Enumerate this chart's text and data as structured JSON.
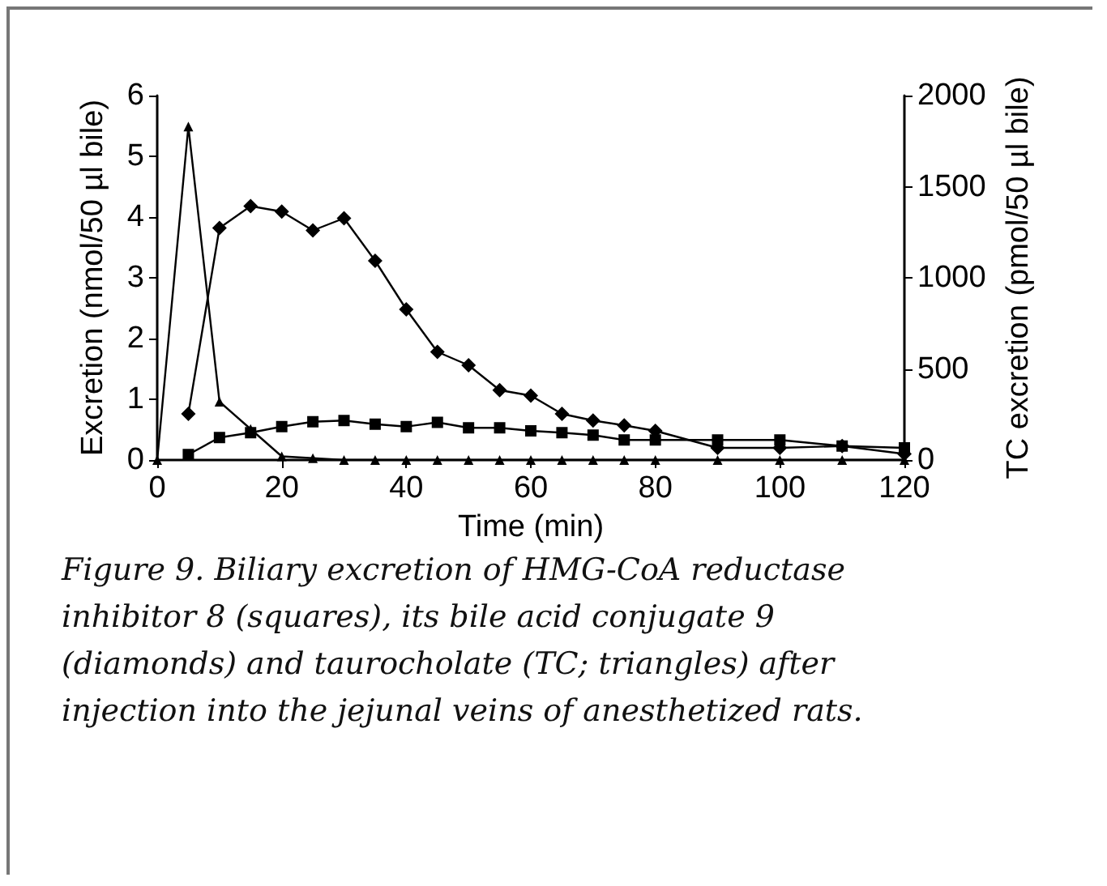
{
  "chart_data": {
    "type": "line",
    "xlabel": "Time (min)",
    "ylabel": "Excretion (nmol/50 µl bile)",
    "y2label": "TC excretion (pmol/50 µl bile)",
    "x": [
      5,
      10,
      15,
      20,
      25,
      30,
      35,
      40,
      45,
      50,
      55,
      60,
      65,
      70,
      75,
      80,
      90,
      100,
      110,
      120
    ],
    "series": [
      {
        "color": "#000000",
        "marker": "square",
        "values": [
          0.09,
          0.37,
          0.45,
          0.55,
          0.63,
          0.65,
          0.59,
          0.55,
          0.62,
          0.53,
          0.53,
          0.48,
          0.45,
          0.41,
          0.33,
          0.33,
          0.33,
          0.33,
          0.23,
          0.2
        ]
      },
      {
        "color": "#000000",
        "marker": "diamond",
        "values": [
          0.76,
          3.82,
          4.18,
          4.09,
          3.78,
          3.98,
          3.28,
          2.48,
          1.78,
          1.56,
          1.15,
          1.06,
          0.76,
          0.65,
          0.57,
          0.48,
          0.2,
          0.2,
          0.23,
          0.1
        ]
      },
      {
        "color": "#000000",
        "marker": "triangle",
        "axis": "y2",
        "x": [
          0,
          5,
          10,
          15,
          20,
          25,
          30,
          35,
          40,
          45,
          50,
          55,
          60,
          65,
          70,
          75,
          80,
          90,
          100,
          110,
          120
        ],
        "values": [
          0,
          1830,
          320,
          170,
          20,
          10,
          0,
          0,
          0,
          0,
          0,
          0,
          0,
          0,
          0,
          0,
          0,
          0,
          0,
          0,
          0
        ]
      }
    ],
    "xlim": [
      0,
      120
    ],
    "xticks": [
      0,
      20,
      40,
      60,
      80,
      100,
      120
    ],
    "ylim": [
      0,
      6
    ],
    "yticks": [
      0,
      1,
      2,
      3,
      4,
      5,
      6
    ],
    "y2lim": [
      0,
      2000
    ],
    "y2ticks": [
      0,
      500,
      1000,
      1500,
      2000
    ],
    "grid": false,
    "line_style": "solid",
    "annotations": [
      "Figure 9. Biliary excretion of HMG-CoA reductase inhibitor 8 (squares), its bile acid conjugate 9 (diamonds) and taurocholate (TC; triangles) after injection into the jejunal veins of anesthetized rats."
    ]
  }
}
